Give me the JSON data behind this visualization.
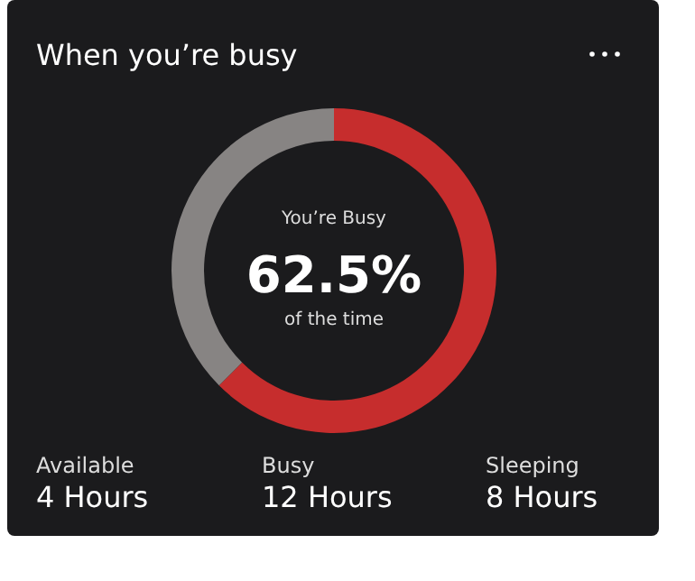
{
  "chart_data": {
    "type": "donut",
    "title": "When you’re busy",
    "categories": [
      null,
      null
    ],
    "values": [
      62.5,
      37.5
    ],
    "colors": [
      "#c62d2d",
      "#878483"
    ],
    "annotations": [
      "You’re Busy",
      "62.5%",
      "of the time",
      "Available",
      "4 Hours",
      "Busy",
      "12 Hours",
      "Sleeping",
      "8 Hours"
    ]
  }
}
